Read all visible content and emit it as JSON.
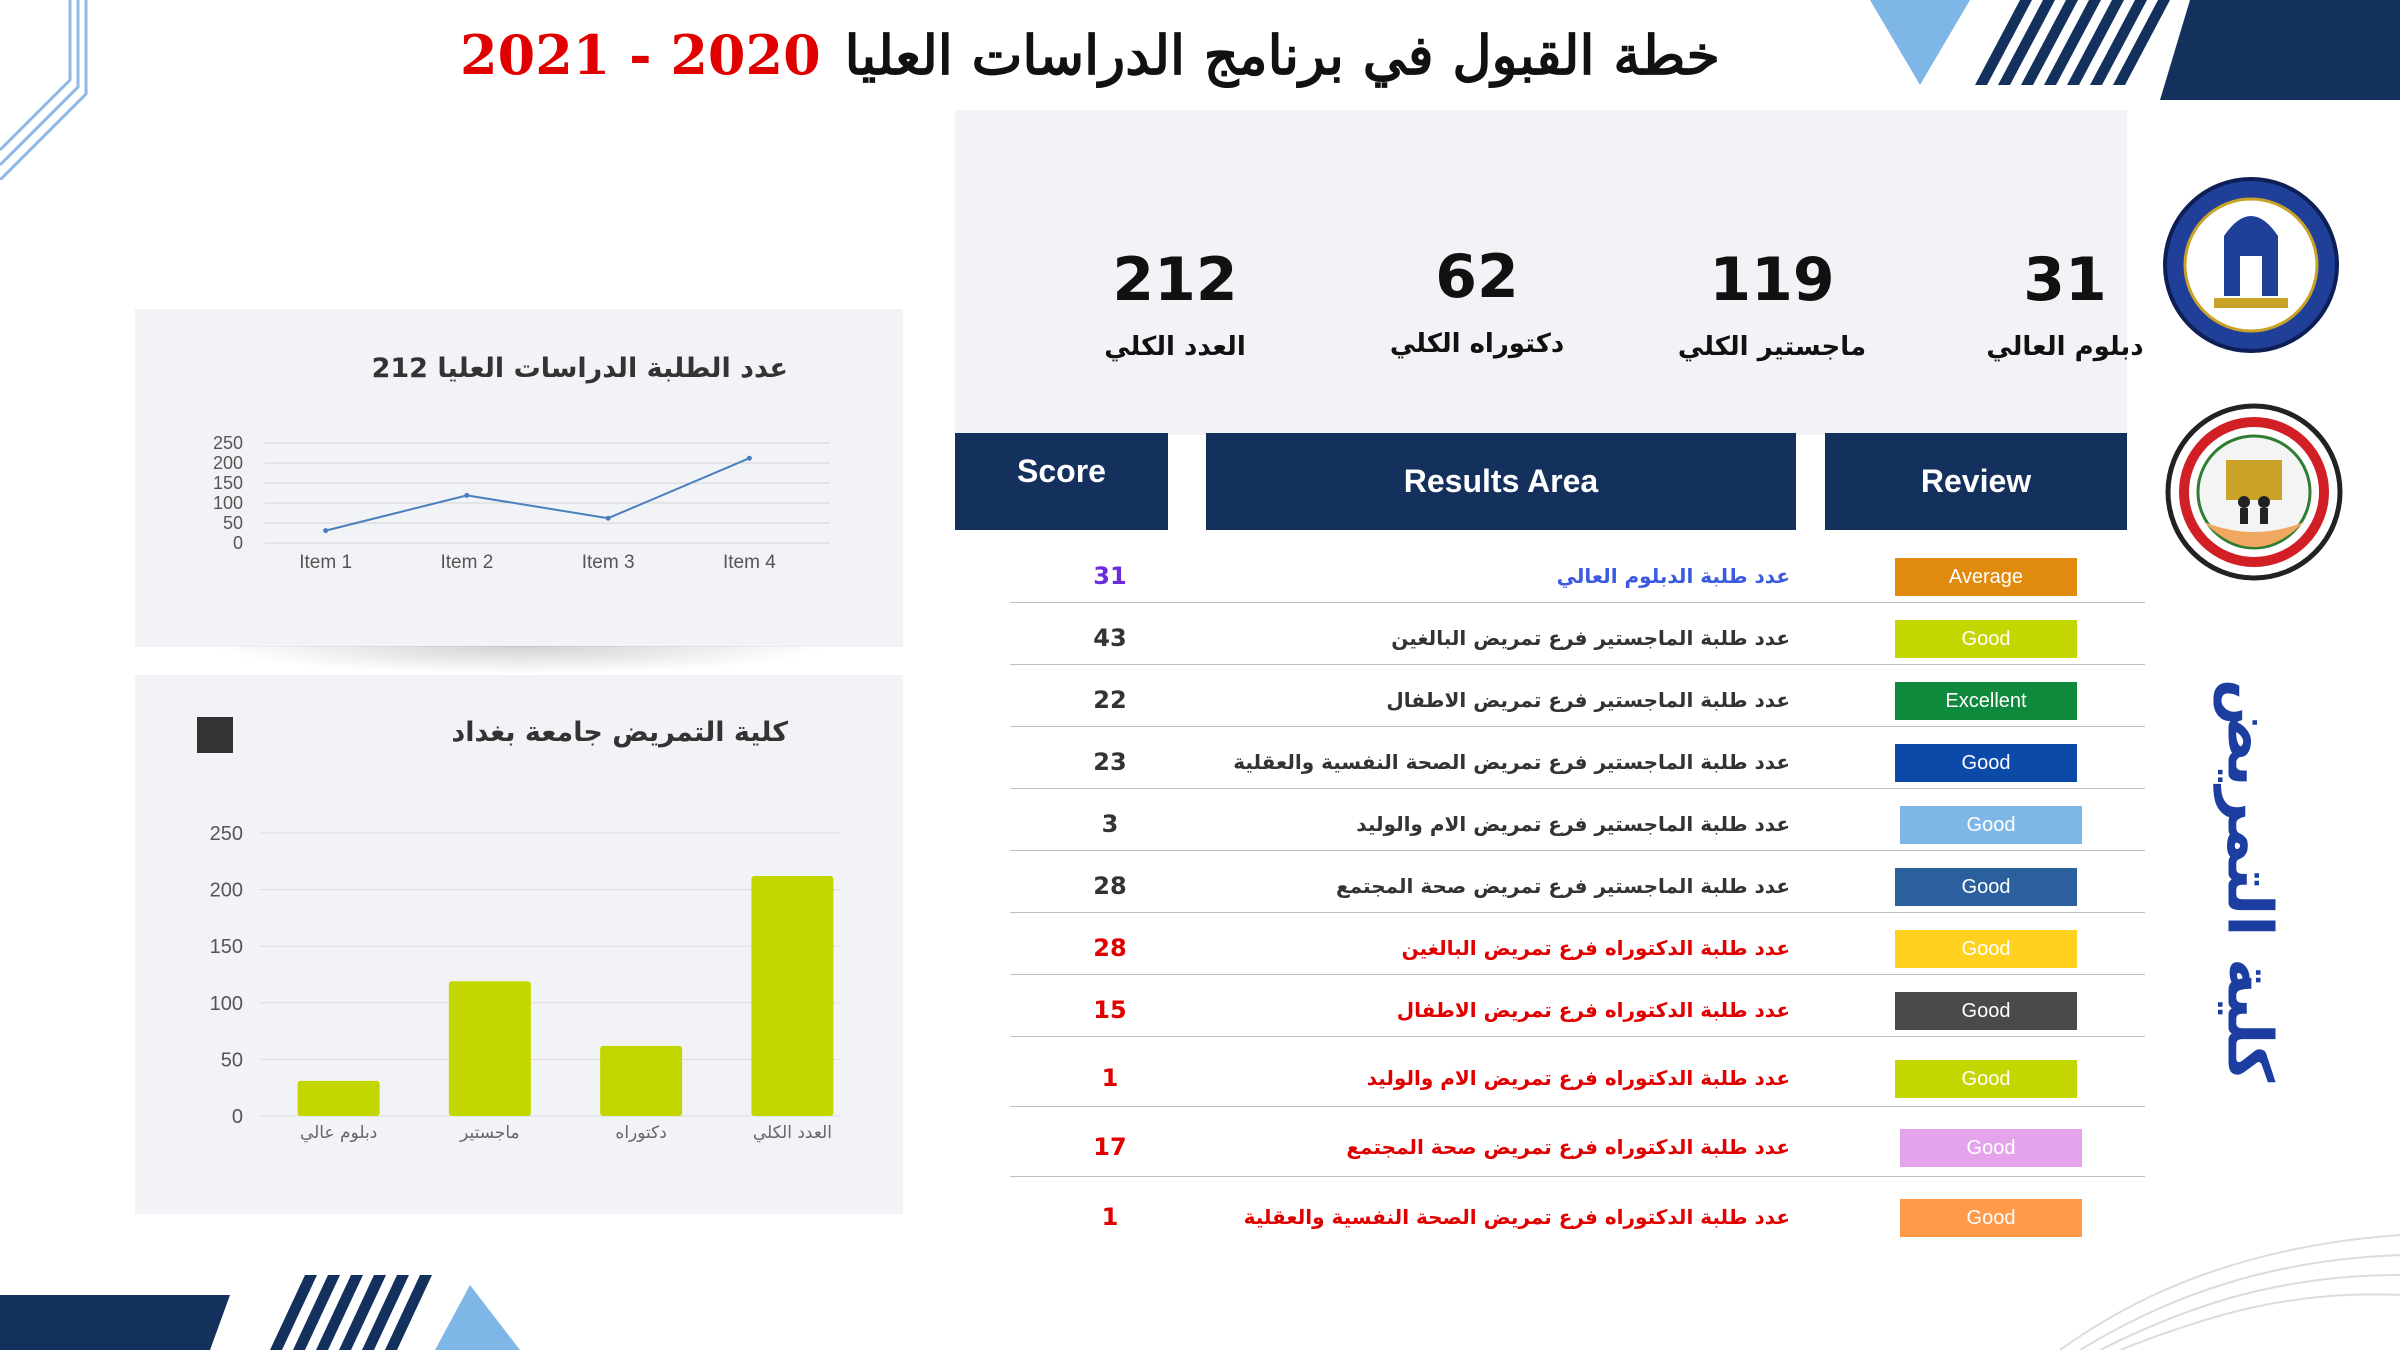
{
  "title": {
    "main": "خطة القبول في برنامج الدراسات العليا",
    "year": "2020 - 2021"
  },
  "summary": [
    {
      "value": "212",
      "label": "العدد الكلي"
    },
    {
      "value": "62",
      "label": "دكتوراه الكلي"
    },
    {
      "value": "119",
      "label": "ماجستير الكلي"
    },
    {
      "value": "31",
      "label": "دبلوم العالي"
    }
  ],
  "table": {
    "headers": {
      "score": "Score",
      "results": "Results Area",
      "review": "Review"
    },
    "rows": [
      {
        "score": "31",
        "desc": "عدد طلبة الدبلوم العالي",
        "badge": "Average",
        "badge_color": "#e08a0e",
        "score_color": "#6a2bd9",
        "desc_color": "#3a5be0"
      },
      {
        "score": "43",
        "desc": "عدد طلبة الماجستير فرع تمريض البالغين",
        "badge": "Good",
        "badge_color": "#c4d600",
        "score_color": "#333333",
        "desc_color": "#333333"
      },
      {
        "score": "22",
        "desc": "عدد طلبة الماجستير فرع تمريض الاطفال",
        "badge": "Excellent",
        "badge_color": "#0f8a3c",
        "score_color": "#333333",
        "desc_color": "#333333"
      },
      {
        "score": "23",
        "desc": "عدد طلبة الماجستير فرع تمريض الصحة النفسية والعقلية",
        "badge": "Good",
        "badge_color": "#0b4aa8",
        "score_color": "#333333",
        "desc_color": "#333333"
      },
      {
        "score": "3",
        "desc": "عدد طلبة الماجستير فرع تمريض الام والوليد",
        "badge": "Good",
        "badge_color": "#7fb6e8",
        "score_color": "#333333",
        "desc_color": "#333333"
      },
      {
        "score": "28",
        "desc": "عدد طلبة الماجستير فرع تمريض صحة المجتمع",
        "badge": "Good",
        "badge_color": "#2c5f9e",
        "score_color": "#333333",
        "desc_color": "#333333"
      },
      {
        "score": "28",
        "desc": "عدد طلبة الدكتوراه فرع تمريض البالغين",
        "badge": "Good",
        "badge_color": "#ffd21f",
        "score_color": "#e00000",
        "desc_color": "#e00000"
      },
      {
        "score": "15",
        "desc": "عدد طلبة  الدكتوراه فرع تمريض الاطفال",
        "badge": "Good",
        "badge_color": "#4a4a4a",
        "score_color": "#e00000",
        "desc_color": "#e00000"
      },
      {
        "score": "1",
        "desc": "عدد طلبة الدكتوراه فرع تمريض الام والوليد",
        "badge": "Good",
        "badge_color": "#c4d600",
        "score_color": "#e00000",
        "desc_color": "#e00000"
      },
      {
        "score": "17",
        "desc": "عدد طلبة الدكتوراه فرع تمريض صحة المجتمع",
        "badge": "Good",
        "badge_color": "#e3a4ec",
        "score_color": "#e00000",
        "desc_color": "#e00000"
      },
      {
        "score": "1",
        "desc": "عدد طلبة الدكتوراه فرع تمريض الصحة النفسية والعقلية",
        "badge": "Good",
        "badge_color": "#ff9a4a",
        "score_color": "#e00000",
        "desc_color": "#e00000"
      }
    ]
  },
  "college_name": "كلية التمريض",
  "colors": {
    "navy": "#13315c",
    "accent_red": "#e00000",
    "bar": "#c4d600",
    "line": "#4a7fbf",
    "panel": "#f2f3f6"
  },
  "chart_data": [
    {
      "type": "line",
      "title": "عدد الطلبة الدراسات العليا  212",
      "categories": [
        "Item 1",
        "Item 2",
        "Item 3",
        "Item 4"
      ],
      "values": [
        31,
        119,
        62,
        212
      ],
      "ylim": [
        0,
        250
      ],
      "yticks": [
        0,
        50,
        100,
        150,
        200,
        250
      ],
      "grid": true
    },
    {
      "type": "bar",
      "title": "كلية التمريض جامعة بغداد",
      "categories": [
        "دبلوم عالي",
        "ماجستير",
        "دكتوراه",
        "العدد الكلي"
      ],
      "values": [
        31,
        119,
        62,
        212
      ],
      "ylim": [
        0,
        250
      ],
      "yticks": [
        0,
        50,
        100,
        150,
        200,
        250
      ],
      "grid": true,
      "legend": "top-left"
    }
  ]
}
